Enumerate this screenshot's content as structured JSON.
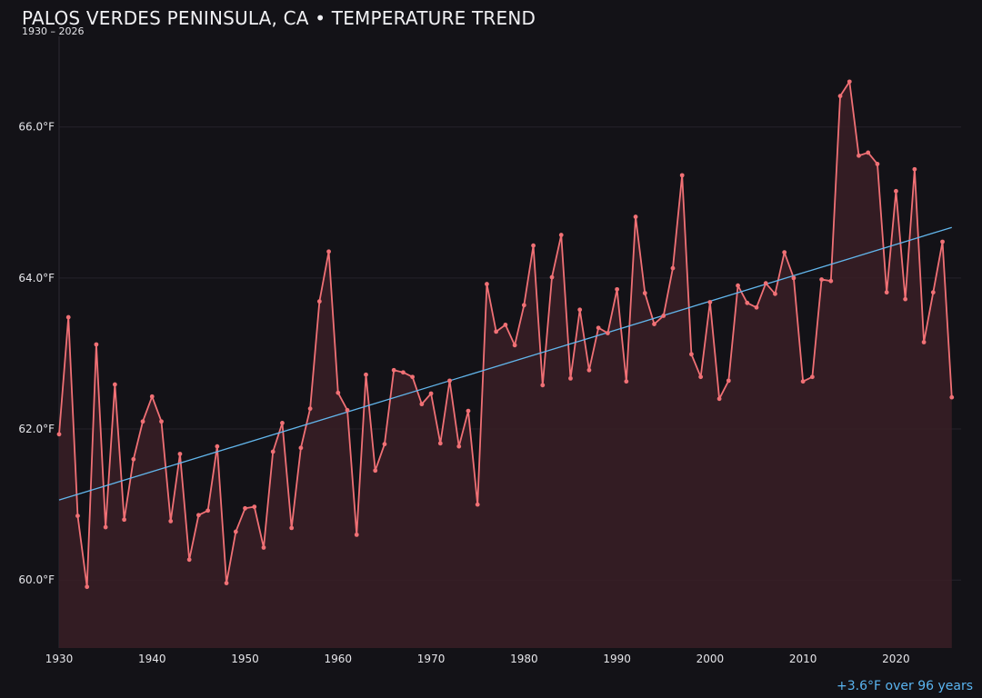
{
  "header": {
    "title": "PALOS VERDES PENINSULA, CA • TEMPERATURE TREND",
    "subtitle": "1930 – 2026"
  },
  "footnote": "+3.6°F over 96 years",
  "colors": {
    "background": "#131217",
    "line": "#f07075",
    "area": "#3a1f26",
    "trend": "#62b6ec",
    "grid": "#24232b",
    "text": "#e6e6ea"
  },
  "chart_data": {
    "type": "line",
    "title": "PALOS VERDES PENINSULA, CA • TEMPERATURE TREND",
    "subtitle": "1930 – 2026",
    "xlabel": "",
    "ylabel": "",
    "xlim": [
      1930,
      2027
    ],
    "ylim": [
      59.1,
      67.2
    ],
    "x_ticks": [
      1930,
      1940,
      1950,
      1960,
      1970,
      1980,
      1990,
      2000,
      2010,
      2020
    ],
    "x_tick_labels": [
      "1930",
      "1940",
      "1950",
      "1960",
      "1970",
      "1980",
      "1990",
      "2000",
      "2010",
      "2020"
    ],
    "y_ticks": [
      60,
      62,
      64,
      66
    ],
    "y_tick_labels": [
      "60.0°F",
      "62.0°F",
      "64.0°F",
      "66.0°F"
    ],
    "grid": true,
    "series": [
      {
        "style": "line-with-markers-and-area",
        "x": [
          1930,
          1931,
          1932,
          1933,
          1934,
          1935,
          1936,
          1937,
          1938,
          1939,
          1940,
          1941,
          1942,
          1943,
          1944,
          1945,
          1946,
          1947,
          1948,
          1949,
          1950,
          1951,
          1952,
          1953,
          1954,
          1955,
          1956,
          1957,
          1958,
          1959,
          1960,
          1961,
          1962,
          1963,
          1964,
          1965,
          1966,
          1967,
          1968,
          1969,
          1970,
          1971,
          1972,
          1973,
          1974,
          1975,
          1976,
          1977,
          1978,
          1979,
          1980,
          1981,
          1982,
          1983,
          1984,
          1985,
          1986,
          1987,
          1988,
          1989,
          1990,
          1991,
          1992,
          1993,
          1994,
          1995,
          1996,
          1997,
          1998,
          1999,
          2000,
          2001,
          2002,
          2003,
          2004,
          2005,
          2006,
          2007,
          2008,
          2009,
          2010,
          2011,
          2012,
          2013,
          2014,
          2015,
          2016,
          2017,
          2018,
          2019,
          2020,
          2021,
          2022,
          2023,
          2024,
          2025,
          2026
        ],
        "values": [
          61.93,
          63.48,
          60.85,
          59.91,
          63.12,
          60.7,
          62.59,
          60.8,
          61.6,
          62.1,
          62.43,
          62.1,
          60.78,
          61.67,
          60.27,
          60.86,
          60.92,
          61.77,
          59.96,
          60.64,
          60.95,
          60.97,
          60.43,
          61.7,
          62.08,
          60.69,
          61.75,
          62.27,
          63.69,
          64.35,
          62.48,
          62.25,
          60.6,
          62.72,
          61.45,
          61.8,
          62.78,
          62.75,
          62.69,
          62.33,
          62.47,
          61.81,
          62.64,
          61.77,
          62.24,
          61.0,
          63.92,
          63.29,
          63.38,
          63.11,
          63.64,
          64.43,
          62.58,
          64.01,
          64.57,
          62.67,
          63.58,
          62.78,
          63.34,
          63.27,
          63.85,
          62.63,
          64.81,
          63.8,
          63.39,
          63.5,
          64.13,
          65.36,
          62.99,
          62.69,
          63.68,
          62.4,
          62.64,
          63.9,
          63.67,
          63.61,
          63.93,
          63.79,
          64.34,
          64.0,
          62.63,
          62.69,
          63.98,
          63.96,
          66.41,
          66.6,
          65.62,
          65.66,
          65.51,
          63.81,
          65.15,
          63.72,
          65.44,
          63.15,
          63.81,
          64.48,
          62.42
        ]
      },
      {
        "style": "trend-line",
        "x": [
          1930,
          2026
        ],
        "values": [
          61.06,
          64.67
        ]
      }
    ]
  }
}
